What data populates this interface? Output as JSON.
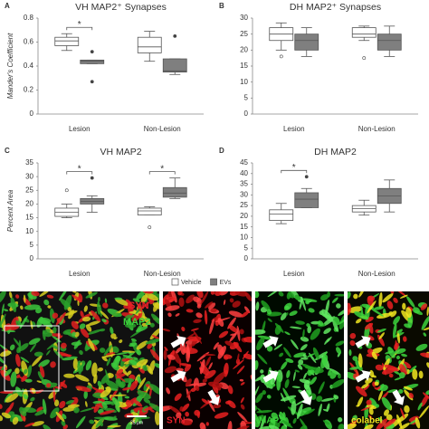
{
  "chart_data": [
    {
      "type": "box",
      "panel": "A",
      "title": "VH MAP2⁺ Synapses",
      "y_label": "Mander's Coefficient",
      "categories": [
        "Lesion",
        "Non-Lesion"
      ],
      "ylim": [
        0,
        0.8
      ],
      "yticks": [
        0,
        0.2,
        0.4,
        0.6,
        0.8
      ],
      "legend": false,
      "series": [
        {
          "name": "Vehicle",
          "color": "#ffffff",
          "values": [
            {
              "min": 0.53,
              "q1": 0.57,
              "median": 0.61,
              "q3": 0.64,
              "max": 0.67,
              "outliers": []
            },
            {
              "min": 0.44,
              "q1": 0.51,
              "median": 0.56,
              "q3": 0.64,
              "max": 0.69,
              "outliers": []
            }
          ]
        },
        {
          "name": "EVs",
          "color": "#7f7f7f",
          "values": [
            {
              "min": 0.42,
              "q1": 0.42,
              "median": 0.44,
              "q3": 0.45,
              "max": 0.45,
              "outliers": [
                0.52,
                0.27
              ]
            },
            {
              "min": 0.33,
              "q1": 0.35,
              "median": 0.36,
              "q3": 0.46,
              "max": 0.46,
              "outliers": [
                0.65
              ]
            }
          ]
        }
      ],
      "annotations": [
        {
          "text": "*",
          "category": "Lesion"
        }
      ]
    },
    {
      "type": "box",
      "panel": "B",
      "title": "DH MAP2⁺ Synapses",
      "categories": [
        "Lesion",
        "Non-Lesion"
      ],
      "ylim": [
        0,
        30
      ],
      "yticks": [
        0,
        5,
        10,
        15,
        20,
        25,
        30
      ],
      "legend": false,
      "series": [
        {
          "name": "Vehicle",
          "color": "#ffffff",
          "values": [
            {
              "min": 20,
              "q1": 23,
              "median": 25,
              "q3": 27,
              "max": 28.5,
              "outliers": [
                18
              ]
            },
            {
              "min": 23,
              "q1": 24,
              "median": 25,
              "q3": 27,
              "max": 27.5,
              "outliers": [
                17.5
              ]
            }
          ]
        },
        {
          "name": "EVs",
          "color": "#7f7f7f",
          "values": [
            {
              "min": 18,
              "q1": 20,
              "median": 23,
              "q3": 25,
              "max": 27,
              "outliers": []
            },
            {
              "min": 18,
              "q1": 20,
              "median": 23,
              "q3": 25,
              "max": 27.5,
              "outliers": []
            }
          ]
        }
      ],
      "annotations": []
    },
    {
      "type": "box",
      "panel": "C",
      "title": "VH MAP2",
      "y_label": "Percent Area",
      "categories": [
        "Lesion",
        "Non-Lesion"
      ],
      "ylim": [
        0,
        35
      ],
      "yticks": [
        0,
        5,
        10,
        15,
        20,
        25,
        30,
        35
      ],
      "legend": "bottom",
      "series": [
        {
          "name": "Vehicle",
          "color": "#ffffff",
          "values": [
            {
              "min": 15,
              "q1": 15.5,
              "median": 17,
              "q3": 18.5,
              "max": 20,
              "outliers": [
                25
              ]
            },
            {
              "min": 16,
              "q1": 16,
              "median": 17.5,
              "q3": 18.5,
              "max": 19,
              "outliers": [
                11.5
              ]
            }
          ]
        },
        {
          "name": "EVs",
          "color": "#7f7f7f",
          "values": [
            {
              "min": 17,
              "q1": 20,
              "median": 21,
              "q3": 22,
              "max": 23,
              "outliers": [
                29.5
              ]
            },
            {
              "min": 22,
              "q1": 22.5,
              "median": 24,
              "q3": 26,
              "max": 29.5,
              "outliers": []
            }
          ]
        }
      ],
      "annotations": [
        {
          "text": "*",
          "category": "Lesion"
        },
        {
          "text": "*",
          "category": "Non-Lesion"
        }
      ]
    },
    {
      "type": "box",
      "panel": "D",
      "title": "DH MAP2",
      "categories": [
        "Lesion",
        "Non-Lesion"
      ],
      "ylim": [
        0,
        45
      ],
      "yticks": [
        0,
        5,
        10,
        15,
        20,
        25,
        30,
        35,
        40,
        45
      ],
      "legend": false,
      "series": [
        {
          "name": "Vehicle",
          "color": "#ffffff",
          "values": [
            {
              "min": 16.5,
              "q1": 18,
              "median": 21,
              "q3": 23,
              "max": 26,
              "outliers": []
            },
            {
              "min": 20.5,
              "q1": 22,
              "median": 23.5,
              "q3": 25,
              "max": 27.5,
              "outliers": []
            }
          ]
        },
        {
          "name": "EVs",
          "color": "#7f7f7f",
          "values": [
            {
              "min": 24,
              "q1": 24,
              "median": 28,
              "q3": 31,
              "max": 33,
              "outliers": [
                38.5
              ]
            },
            {
              "min": 22,
              "q1": 26,
              "median": 29.5,
              "q3": 33,
              "max": 37,
              "outliers": []
            }
          ]
        }
      ],
      "annotations": [
        {
          "text": "*",
          "category": "Lesion"
        }
      ]
    }
  ],
  "images": {
    "overview": {
      "labels": [
        "SYN",
        "MAP2"
      ],
      "scale_bar": "25 µm"
    },
    "zooms": [
      "SYN",
      "MAP2",
      "colabel"
    ]
  }
}
